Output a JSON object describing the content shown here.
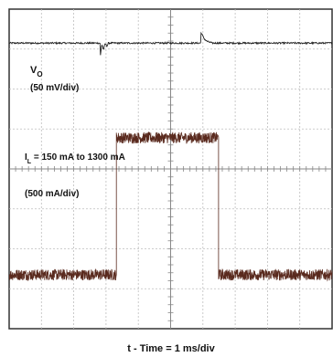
{
  "chart_data": {
    "type": "line",
    "xlabel": "t - Time = 1 ms/div",
    "grid": true,
    "divisions": {
      "x": 10,
      "y": 8
    },
    "series": [
      {
        "name": "VO",
        "scale": "(50 mV/div)",
        "baseline_div": 7.15,
        "noise_div": 0.02,
        "events": [
          {
            "t_div": 2.82,
            "dip_div": -0.35,
            "settle_div": 0.25
          },
          {
            "t_div": 5.96,
            "spike_div": 0.25,
            "settle_div": 0.3
          }
        ],
        "color": "#222222"
      },
      {
        "name": "IL = 150 mA to 1300 mA",
        "scale": "(500 mA/div)",
        "step": [
          {
            "t_div": 0.0,
            "current_mA": 150
          },
          {
            "t_div": 3.32,
            "current_mA": 1300
          },
          {
            "t_div": 6.48,
            "current_mA": 150
          }
        ],
        "color": "#5a2a1e"
      }
    ]
  }
}
